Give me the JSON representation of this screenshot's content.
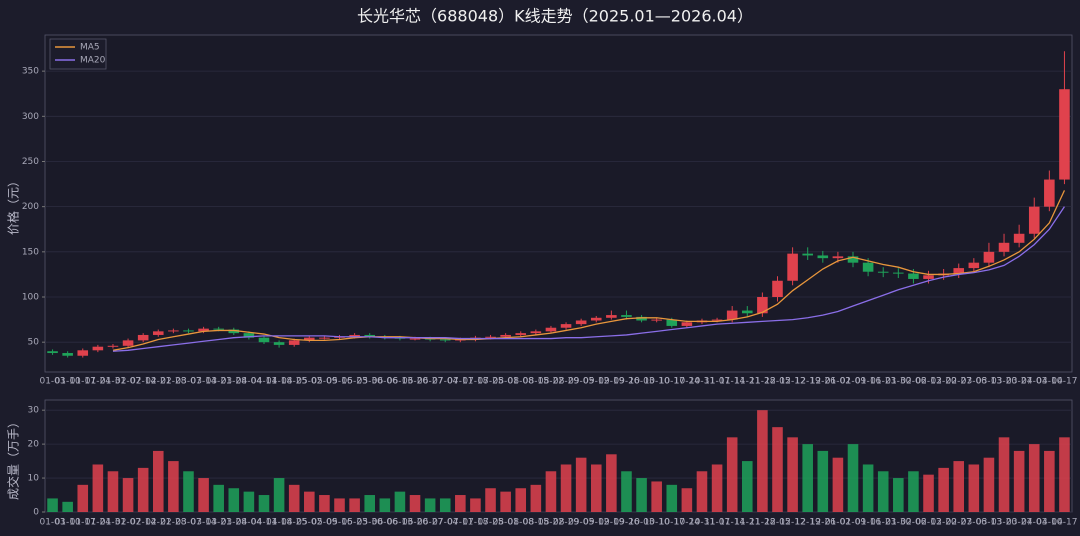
{
  "chart_data": {
    "type": "candlestick",
    "title": "长光华芯（688048）K线走势（2025.01—2026.04）",
    "y_label": "价格（元）",
    "volume_label": "成交量（万手）",
    "categories": [
      "01-03",
      "01-10",
      "01-17",
      "01-24",
      "01-31",
      "02-07",
      "02-14",
      "02-21",
      "02-28",
      "03-07",
      "03-14",
      "03-21",
      "03-28",
      "04-04",
      "04-11",
      "04-18",
      "04-25",
      "05-02",
      "05-09",
      "05-16",
      "05-23",
      "05-30",
      "06-06",
      "06-13",
      "06-20",
      "06-27",
      "07-04",
      "07-11",
      "07-18",
      "07-25",
      "08-01",
      "08-08",
      "08-15",
      "08-22",
      "08-29",
      "09-05",
      "09-12",
      "09-19",
      "09-26",
      "10-03",
      "10-10",
      "10-17",
      "10-24",
      "10-31",
      "11-07",
      "11-14",
      "11-21",
      "11-28",
      "12-05",
      "12-12",
      "12-19",
      "12-26",
      "01-02",
      "01-09",
      "01-16",
      "01-23",
      "01-30",
      "02-06",
      "02-13",
      "02-20",
      "02-27",
      "03-06",
      "03-13",
      "03-20",
      "03-27",
      "04-03",
      "04-10",
      "04-17"
    ],
    "open": [
      40,
      38,
      35,
      41,
      45,
      46,
      52,
      58,
      62,
      63,
      62,
      65,
      64,
      60,
      55,
      50,
      47,
      52,
      55,
      55,
      56,
      58,
      56,
      55,
      54,
      54,
      53,
      52,
      53,
      55,
      56,
      58,
      60,
      62,
      66,
      70,
      74,
      77,
      80,
      78,
      74,
      75,
      68,
      72,
      74,
      75,
      85,
      82,
      100,
      118,
      148,
      146,
      143,
      145,
      138,
      128,
      127,
      126,
      120,
      124,
      126,
      132,
      138,
      150,
      160,
      170,
      200,
      230
    ],
    "high": [
      42,
      40,
      43,
      47,
      48,
      54,
      60,
      64,
      65,
      65,
      67,
      67,
      66,
      62,
      57,
      52,
      54,
      57,
      57,
      58,
      60,
      60,
      58,
      57,
      56,
      56,
      55,
      55,
      57,
      58,
      60,
      62,
      64,
      68,
      72,
      76,
      79,
      85,
      85,
      80,
      77,
      77,
      74,
      76,
      77,
      90,
      90,
      105,
      123,
      155,
      155,
      151,
      150,
      150,
      143,
      133,
      132,
      131,
      129,
      131,
      137,
      143,
      160,
      170,
      180,
      210,
      240,
      372
    ],
    "low": [
      36,
      33,
      33,
      39,
      43,
      44,
      50,
      56,
      60,
      60,
      60,
      62,
      58,
      53,
      48,
      44,
      45,
      50,
      53,
      53,
      54,
      54,
      53,
      52,
      52,
      51,
      50,
      50,
      51,
      53,
      54,
      56,
      58,
      60,
      64,
      68,
      72,
      75,
      75,
      72,
      72,
      66,
      66,
      70,
      72,
      72,
      78,
      78,
      95,
      113,
      141,
      138,
      138,
      133,
      123,
      122,
      121,
      115,
      115,
      119,
      121,
      127,
      133,
      145,
      155,
      165,
      195,
      225
    ],
    "close": [
      38,
      35,
      41,
      45,
      46,
      52,
      58,
      62,
      63,
      62,
      65,
      64,
      60,
      55,
      50,
      47,
      52,
      55,
      55,
      56,
      58,
      56,
      55,
      54,
      54,
      53,
      52,
      53,
      55,
      56,
      58,
      60,
      62,
      66,
      70,
      74,
      77,
      80,
      78,
      74,
      75,
      68,
      72,
      74,
      75,
      85,
      82,
      100,
      118,
      148,
      146,
      143,
      145,
      138,
      128,
      127,
      126,
      120,
      124,
      126,
      132,
      138,
      150,
      160,
      170,
      200,
      230,
      330
    ],
    "volume": [
      4,
      3,
      8,
      14,
      12,
      10,
      13,
      18,
      15,
      12,
      10,
      8,
      7,
      6,
      5,
      10,
      8,
      6,
      5,
      4,
      4,
      5,
      4,
      6,
      5,
      4,
      4,
      5,
      4,
      7,
      6,
      7,
      8,
      12,
      14,
      16,
      14,
      17,
      12,
      10,
      9,
      8,
      7,
      12,
      14,
      22,
      15,
      30,
      25,
      22,
      20,
      18,
      16,
      20,
      14,
      12,
      10,
      12,
      11,
      13,
      15,
      14,
      16,
      22,
      18,
      20,
      18,
      22
    ],
    "up_color": "#e0424d",
    "down_color": "#1fa35a",
    "series": [
      {
        "name": "MA5",
        "color": "#e8963c",
        "values": [
          null,
          null,
          null,
          null,
          41,
          44,
          48,
          53,
          56,
          59,
          62,
          63,
          63,
          61,
          59,
          55,
          53,
          52,
          52,
          53,
          55,
          56,
          56,
          56,
          55,
          54,
          54,
          53,
          53,
          54,
          55,
          56,
          58,
          60,
          63,
          66,
          70,
          73,
          76,
          77,
          77,
          75,
          73,
          73,
          73,
          75,
          78,
          83,
          92,
          107,
          119,
          131,
          140,
          144,
          140,
          136,
          133,
          128,
          125,
          125,
          126,
          128,
          134,
          141,
          150,
          164,
          182,
          218
        ]
      },
      {
        "name": "MA20",
        "color": "#8a6ee8",
        "values": [
          null,
          null,
          null,
          null,
          40,
          41,
          43,
          45,
          47,
          49,
          51,
          53,
          55,
          56,
          57,
          57,
          57,
          57,
          57,
          56,
          56,
          56,
          55,
          55,
          55,
          55,
          55,
          54,
          54,
          54,
          54,
          54,
          54,
          54,
          55,
          55,
          56,
          57,
          58,
          60,
          62,
          64,
          66,
          68,
          70,
          71,
          72,
          73,
          74,
          75,
          77,
          80,
          84,
          90,
          96,
          102,
          108,
          113,
          118,
          122,
          125,
          127,
          130,
          135,
          145,
          158,
          175,
          200
        ]
      }
    ],
    "ylim": [
      17,
      390
    ],
    "yticks": [
      50,
      100,
      150,
      200,
      250,
      300,
      350
    ],
    "volume_ylim": [
      0,
      33
    ],
    "volume_yticks": [
      0,
      10,
      20,
      30
    ],
    "grid": true,
    "legend": "upper left"
  }
}
